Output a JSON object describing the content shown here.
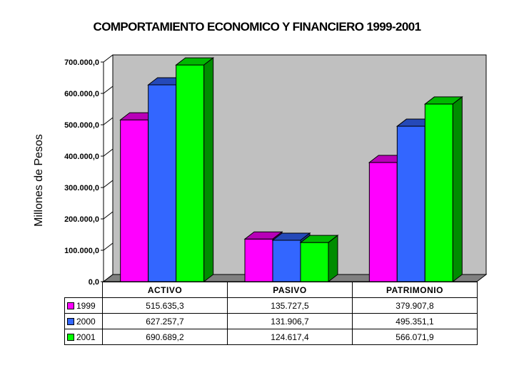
{
  "chart_data": {
    "type": "bar",
    "title": "COMPORTAMIENTO ECONOMICO Y FINANCIERO 1999-2001",
    "xlabel": "",
    "ylabel": "Millones de Pesos",
    "ylim": [
      0,
      700000
    ],
    "yticks": [
      "0,0",
      "100.000,0",
      "200.000,0",
      "300.000,0",
      "400.000,0",
      "500.000,0",
      "600.000,0",
      "700.000,0"
    ],
    "categories": [
      "ACTIVO",
      "PASIVO",
      "PATRIMONIO"
    ],
    "series": [
      {
        "name": "1999",
        "color": "#ff00ff",
        "values": [
          515635.3,
          135727.5,
          379907.8
        ],
        "labels": [
          "515.635,3",
          "135.727,5",
          "379.907,8"
        ]
      },
      {
        "name": "2000",
        "color": "#3366ff",
        "values": [
          627257.7,
          131906.7,
          495351.1
        ],
        "labels": [
          "627.257,7",
          "131.906,7",
          "495.351,1"
        ]
      },
      {
        "name": "2001",
        "color": "#00ff00",
        "values": [
          690689.2,
          124617.4,
          566071.9
        ],
        "labels": [
          "690.689,2",
          "124.617,4",
          "566.071,9"
        ]
      }
    ],
    "grid": false,
    "legend": "data table",
    "style": "3d-column",
    "wall_color": "#c0c0c0",
    "floor_color": "#808080"
  }
}
